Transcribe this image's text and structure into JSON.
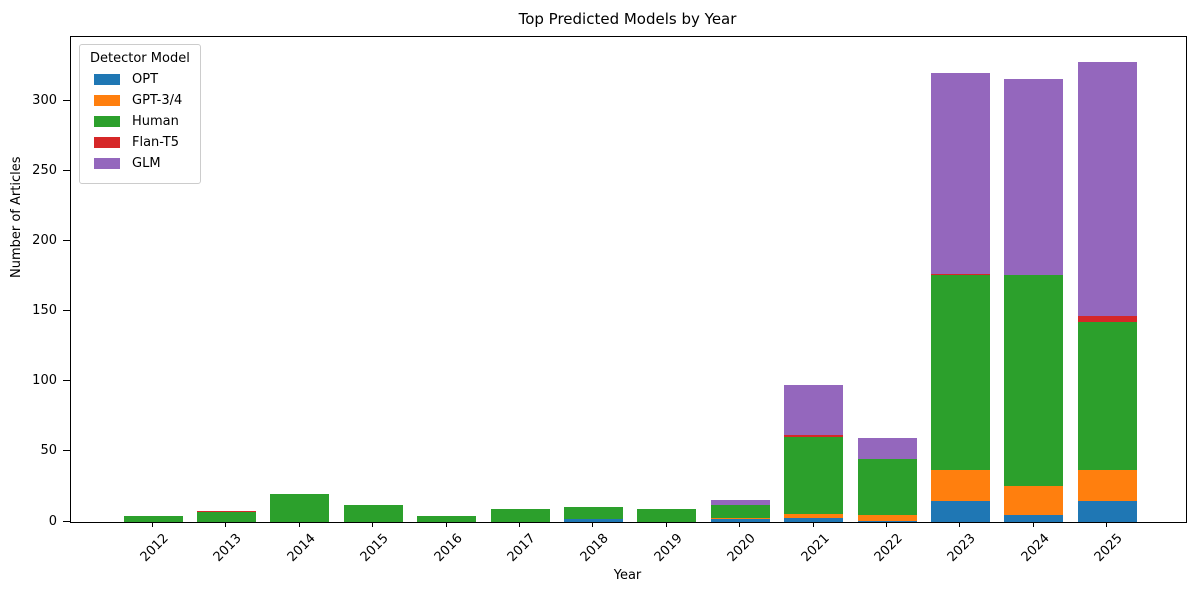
{
  "title": "Top Predicted Models by Year",
  "chart_data": {
    "type": "bar",
    "stacked": true,
    "title": "Top Predicted Models by Year",
    "xlabel": "Year",
    "ylabel": "Number of Articles",
    "categories": [
      "2012",
      "2013",
      "2014",
      "2015",
      "2016",
      "2017",
      "2018",
      "2019",
      "2020",
      "2021",
      "2022",
      "2023",
      "2024",
      "2025"
    ],
    "series": [
      {
        "name": "OPT",
        "color": "#1f77b4",
        "values": [
          0,
          0,
          0,
          0,
          0,
          0,
          2,
          0,
          2,
          3,
          1,
          15,
          5,
          15
        ]
      },
      {
        "name": "GPT-3/4",
        "color": "#ff7f0e",
        "values": [
          0,
          0,
          0,
          0,
          0,
          0,
          0,
          0,
          1,
          3,
          4,
          22,
          21,
          22
        ]
      },
      {
        "name": "Human",
        "color": "#2ca02c",
        "values": [
          4,
          7,
          20,
          12,
          4,
          9,
          9,
          9,
          9,
          55,
          40,
          139,
          150,
          106
        ]
      },
      {
        "name": "Flan-T5",
        "color": "#d62728",
        "values": [
          0,
          1,
          0,
          0,
          0,
          0,
          0,
          0,
          0,
          1,
          0,
          1,
          0,
          4
        ]
      },
      {
        "name": "GLM",
        "color": "#9467bd",
        "values": [
          0,
          0,
          0,
          0,
          0,
          0,
          0,
          0,
          4,
          36,
          15,
          143,
          140,
          181
        ]
      }
    ],
    "totals": [
      4,
      8,
      20,
      12,
      4,
      9,
      11,
      9,
      16,
      98,
      60,
      320,
      316,
      328
    ],
    "legend": {
      "title": "Detector Model",
      "position": "upper left"
    },
    "yticks": [
      0,
      50,
      100,
      150,
      200,
      250,
      300
    ],
    "ylim": [
      0,
      346
    ],
    "grid": false,
    "bar_color_note": "matplotlib tab10"
  }
}
